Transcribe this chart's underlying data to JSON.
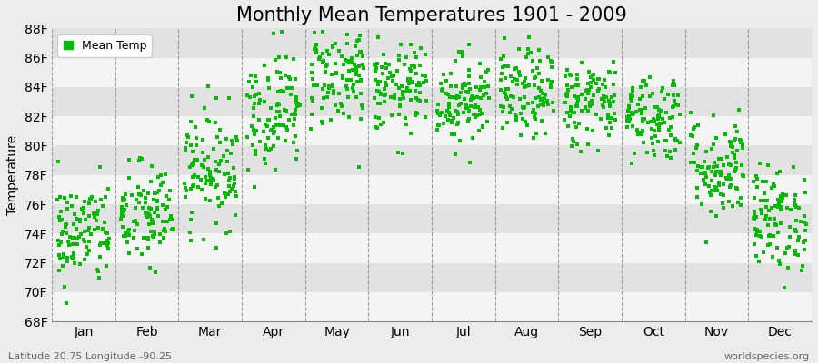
{
  "title": "Monthly Mean Temperatures 1901 - 2009",
  "ylabel": "Temperature",
  "months": [
    "Jan",
    "Feb",
    "Mar",
    "Apr",
    "May",
    "Jun",
    "Jul",
    "Aug",
    "Sep",
    "Oct",
    "Nov",
    "Dec"
  ],
  "ylim": [
    68,
    88
  ],
  "yticks": [
    68,
    70,
    72,
    74,
    76,
    78,
    80,
    82,
    84,
    86,
    88
  ],
  "ytick_labels": [
    "68F",
    "70F",
    "72F",
    "74F",
    "76F",
    "78F",
    "80F",
    "82F",
    "84F",
    "86F",
    "88F"
  ],
  "dot_color": "#00BB00",
  "dot_size": 6,
  "bg_color": "#ECECEC",
  "band_color_light": "#F4F4F4",
  "band_color_dark": "#E2E2E2",
  "legend_label": "Mean Temp",
  "bottom_left_text": "Latitude 20.75 Longitude -90.25",
  "bottom_right_text": "worldspecies.org",
  "title_fontsize": 15,
  "axis_fontsize": 10,
  "tick_fontsize": 10,
  "monthly_means": [
    74.0,
    75.2,
    78.5,
    82.5,
    84.8,
    83.8,
    83.2,
    83.5,
    83.0,
    82.0,
    78.5,
    75.0
  ],
  "monthly_stds": [
    1.8,
    1.8,
    2.0,
    2.0,
    1.8,
    1.5,
    1.5,
    1.5,
    1.5,
    1.5,
    1.8,
    1.8
  ],
  "n_years": 109
}
